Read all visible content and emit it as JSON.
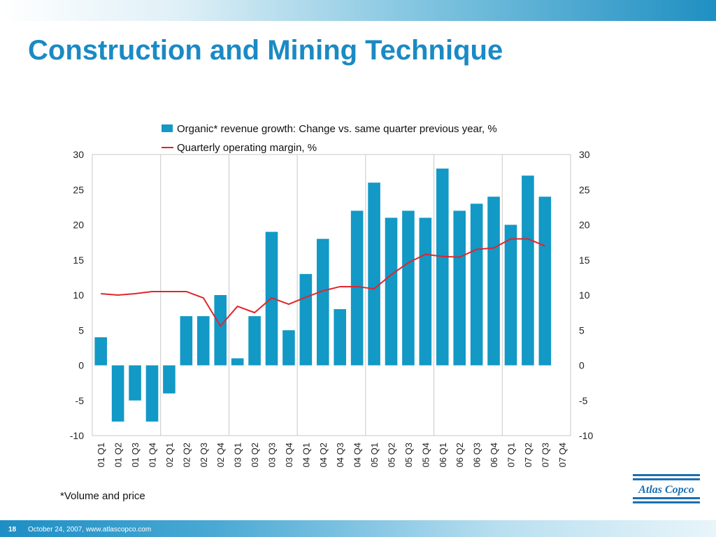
{
  "slide": {
    "title": "Construction and Mining Technique",
    "footnote": "*Volume and price",
    "page_number": "18",
    "footer": "October 24, 2007, www.atlascopco.com",
    "logo_text": "Atlas Copco"
  },
  "colors": {
    "bar": "#1299c6",
    "line": "#e0262b",
    "title": "#1a8ac4",
    "grid": "#c8c8c8",
    "logo": "#1b6fb0"
  },
  "chart_data": {
    "type": "bar",
    "categories": [
      "01 Q1",
      "01 Q2",
      "01 Q3",
      "01 Q4",
      "02 Q1",
      "02 Q2",
      "02 Q3",
      "02 Q4",
      "03 Q1",
      "03 Q2",
      "03 Q3",
      "03 Q4",
      "04 Q1",
      "04 Q2",
      "04 Q3",
      "04 Q4",
      "05 Q1",
      "05 Q2",
      "05 Q3",
      "05 Q4",
      "06 Q1",
      "06 Q2",
      "06 Q3",
      "06 Q4",
      "07 Q1",
      "07 Q2",
      "07 Q3",
      "07 Q4"
    ],
    "series": [
      {
        "name": "Organic* revenue growth: Change vs. same quarter previous year, %",
        "type": "bar",
        "values": [
          4,
          -8,
          -5,
          -8,
          -4,
          7,
          7,
          10,
          1,
          7,
          19,
          5,
          13,
          18,
          8,
          22,
          26,
          21,
          22,
          21,
          28,
          22,
          23,
          24,
          20,
          27,
          24,
          null
        ]
      },
      {
        "name": "Quarterly operating margin, %",
        "type": "line",
        "values": [
          10.2,
          10.0,
          10.2,
          10.5,
          10.5,
          10.5,
          9.6,
          5.6,
          8.4,
          7.5,
          9.6,
          8.7,
          9.7,
          10.6,
          11.2,
          11.2,
          10.9,
          12.9,
          14.6,
          15.8,
          15.5,
          15.4,
          16.5,
          16.7,
          18.0,
          18.0,
          17.0,
          null
        ]
      }
    ],
    "ylim": [
      -10,
      30
    ],
    "yticks": [
      30,
      25,
      20,
      15,
      10,
      5,
      0,
      -5,
      -10
    ],
    "y2ticks": [
      30,
      25,
      20,
      15,
      10,
      5,
      0,
      -5,
      -10
    ],
    "vertical_grid_every": 4,
    "legend_position": "top-center"
  }
}
